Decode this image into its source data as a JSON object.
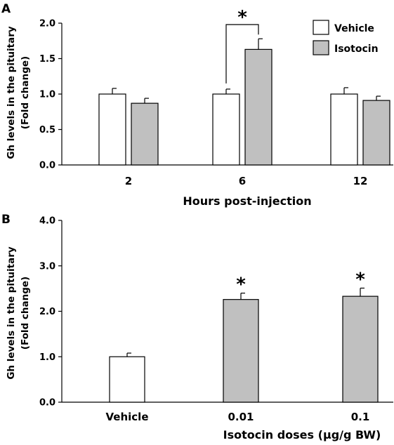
{
  "chart_data": [
    {
      "panel": "A",
      "type": "bar",
      "ylabel_line1": "Gh levels in the pituitary",
      "ylabel_line2": "(Fold change)",
      "xlabel": "Hours post-injection",
      "ylim": [
        0,
        2.0
      ],
      "yticks": [
        "0.0",
        "0.5",
        "1.0",
        "1.5",
        "2.0"
      ],
      "categories": [
        "2",
        "6",
        "12"
      ],
      "series": [
        {
          "name": "Vehicle",
          "color": "#ffffff",
          "values": [
            1.0,
            1.0,
            1.0
          ],
          "errors": [
            0.08,
            0.07,
            0.09
          ]
        },
        {
          "name": "Isotocin",
          "color": "#c0c0c0",
          "values": [
            0.87,
            1.63,
            0.91
          ],
          "errors": [
            0.07,
            0.15,
            0.06
          ]
        }
      ],
      "legend_position": "top-right",
      "significance": [
        {
          "category": 1,
          "label": "*",
          "bracket": true
        }
      ]
    },
    {
      "panel": "B",
      "type": "bar",
      "ylabel_line1": "Gh levels in the pituitary",
      "ylabel_line2": "(Fold change)",
      "xlabel": "Isotocin doses (μg/g BW)",
      "ylim": [
        0,
        4.0
      ],
      "yticks": [
        "0.0",
        "1.0",
        "2.0",
        "3.0",
        "4.0"
      ],
      "categories": [
        "Vehicle",
        "0.01",
        "0.1"
      ],
      "values": [
        1.0,
        2.26,
        2.33
      ],
      "errors": [
        0.08,
        0.14,
        0.18
      ],
      "colors": [
        "#ffffff",
        "#c0c0c0",
        "#c0c0c0"
      ],
      "significance": [
        {
          "category": 1,
          "label": "*"
        },
        {
          "category": 2,
          "label": "*"
        }
      ]
    }
  ]
}
